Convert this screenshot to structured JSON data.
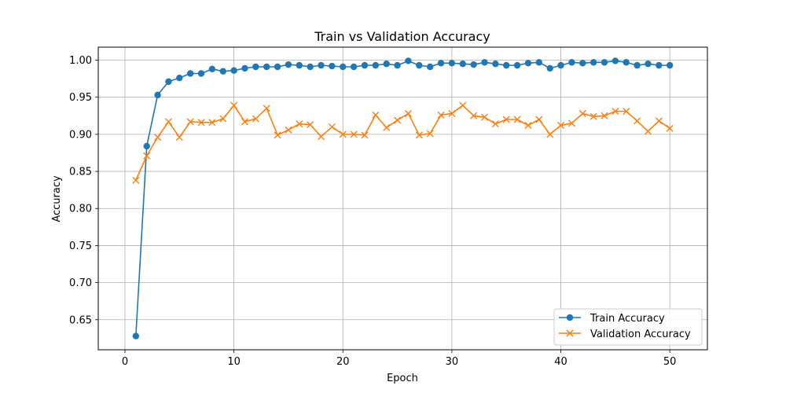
{
  "chart_data": {
    "type": "line",
    "title": "Train vs Validation Accuracy",
    "xlabel": "Epoch",
    "ylabel": "Accuracy",
    "xlim": [
      -2.45,
      53.45
    ],
    "ylim": [
      0.6095,
      1.0175
    ],
    "xticks": [
      0,
      10,
      20,
      30,
      40,
      50
    ],
    "yticks": [
      0.65,
      0.7,
      0.75,
      0.8,
      0.85,
      0.9,
      0.95,
      1.0
    ],
    "ytick_labels": [
      "0.65",
      "0.70",
      "0.75",
      "0.80",
      "0.85",
      "0.90",
      "0.95",
      "1.00"
    ],
    "grid": true,
    "legend_position": "lower right",
    "x": [
      1,
      2,
      3,
      4,
      5,
      6,
      7,
      8,
      9,
      10,
      11,
      12,
      13,
      14,
      15,
      16,
      17,
      18,
      19,
      20,
      21,
      22,
      23,
      24,
      25,
      26,
      27,
      28,
      29,
      30,
      31,
      32,
      33,
      34,
      35,
      36,
      37,
      38,
      39,
      40,
      41,
      42,
      43,
      44,
      45,
      46,
      47,
      48,
      49,
      50
    ],
    "series": [
      {
        "name": "Train Accuracy",
        "color": "#1f77b4",
        "marker": "circle",
        "values": [
          0.628,
          0.884,
          0.953,
          0.971,
          0.976,
          0.982,
          0.982,
          0.988,
          0.985,
          0.986,
          0.989,
          0.991,
          0.991,
          0.991,
          0.994,
          0.993,
          0.991,
          0.993,
          0.992,
          0.991,
          0.991,
          0.993,
          0.993,
          0.995,
          0.993,
          0.999,
          0.993,
          0.991,
          0.996,
          0.996,
          0.995,
          0.994,
          0.997,
          0.995,
          0.993,
          0.993,
          0.996,
          0.997,
          0.989,
          0.993,
          0.997,
          0.996,
          0.997,
          0.997,
          0.999,
          0.997,
          0.993,
          0.995,
          0.993,
          0.993
        ]
      },
      {
        "name": "Validation Accuracy",
        "color": "#ff7f0e",
        "marker": "x",
        "values": [
          0.838,
          0.871,
          0.896,
          0.917,
          0.896,
          0.917,
          0.916,
          0.916,
          0.921,
          0.939,
          0.917,
          0.921,
          0.935,
          0.899,
          0.906,
          0.914,
          0.913,
          0.897,
          0.91,
          0.9,
          0.9,
          0.899,
          0.926,
          0.909,
          0.919,
          0.928,
          0.899,
          0.901,
          0.926,
          0.928,
          0.939,
          0.925,
          0.923,
          0.914,
          0.92,
          0.92,
          0.912,
          0.92,
          0.9,
          0.912,
          0.915,
          0.928,
          0.924,
          0.925,
          0.931,
          0.931,
          0.918,
          0.904,
          0.918,
          0.908
        ]
      }
    ]
  }
}
